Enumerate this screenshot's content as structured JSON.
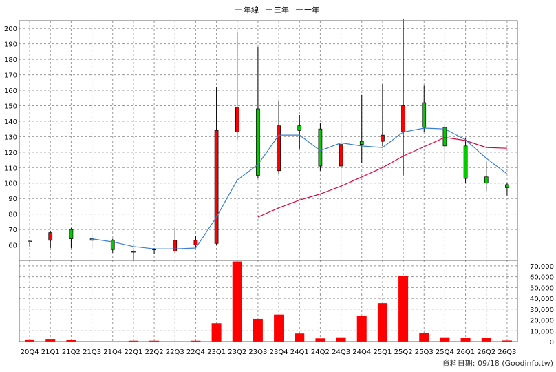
{
  "chart_data": {
    "type": "candlestick",
    "legend": [
      {
        "name": "年線",
        "color": "#3a7fd5"
      },
      {
        "name": "三年",
        "color": "#e0003c"
      },
      {
        "name": "十年",
        "color": "#a0005a"
      }
    ],
    "categories": [
      "20Q4",
      "21Q1",
      "21Q2",
      "21Q3",
      "21Q4",
      "22Q1",
      "22Q2",
      "22Q3",
      "22Q4",
      "23Q1",
      "23Q2",
      "23Q3",
      "23Q4",
      "24Q1",
      "24Q2",
      "24Q3",
      "24Q4",
      "25Q1",
      "25Q2",
      "25Q3",
      "25Q4",
      "26Q1",
      "26Q2",
      "26Q3"
    ],
    "price_axis": {
      "min": 50,
      "max": 205,
      "ticks": [
        60,
        70,
        80,
        90,
        100,
        110,
        120,
        130,
        140,
        150,
        160,
        170,
        180,
        190,
        200
      ]
    },
    "volume_axis": {
      "min": 0,
      "max": 75000,
      "ticks": [
        0,
        10000,
        20000,
        30000,
        40000,
        50000,
        60000,
        70000
      ],
      "tick_labels": [
        "0",
        "10,000",
        "20,000",
        "30,000",
        "40,000",
        "50,000",
        "60,000",
        "70,000"
      ]
    },
    "candles": [
      {
        "open": 62.5,
        "high": 63.0,
        "low": 59.0,
        "close": 62.0
      },
      {
        "open": 63.0,
        "high": 69.0,
        "low": 58.0,
        "close": 68.0
      },
      {
        "open": 70.0,
        "high": 71.0,
        "low": 58.0,
        "close": 64.0
      },
      {
        "open": 64.0,
        "high": 67.0,
        "low": 58.0,
        "close": 63.0
      },
      {
        "open": 63.0,
        "high": 64.0,
        "low": 55.0,
        "close": 57.0
      },
      {
        "open": 56.0,
        "high": 56.5,
        "low": 50.0,
        "close": 56.0
      },
      {
        "open": 57.0,
        "high": 58.0,
        "low": 54.0,
        "close": 57.5
      },
      {
        "open": 56.0,
        "high": 71.0,
        "low": 55.0,
        "close": 63.0
      },
      {
        "open": 60.0,
        "high": 66.0,
        "low": 58.0,
        "close": 63.0
      },
      {
        "open": 61.0,
        "high": 162.0,
        "low": 60.0,
        "close": 134.0
      },
      {
        "open": 133.0,
        "high": 198.0,
        "low": 128.0,
        "close": 149.0
      },
      {
        "open": 148.0,
        "high": 188.0,
        "low": 103.0,
        "close": 105.0
      },
      {
        "open": 108.0,
        "high": 153.0,
        "low": 106.0,
        "close": 137.0
      },
      {
        "open": 137.0,
        "high": 144.0,
        "low": 122.0,
        "close": 134.0
      },
      {
        "open": 135.0,
        "high": 139.0,
        "low": 108.0,
        "close": 111.0
      },
      {
        "open": 111.0,
        "high": 139.0,
        "low": 94.0,
        "close": 125.0
      },
      {
        "open": 127.0,
        "high": 157.0,
        "low": 113.0,
        "close": 125.0
      },
      {
        "open": 127.0,
        "high": 164.0,
        "low": 124.0,
        "close": 131.0
      },
      {
        "open": 133.0,
        "high": 206.0,
        "low": 105.0,
        "close": 150.0
      },
      {
        "open": 152.0,
        "high": 163.0,
        "low": 133.0,
        "close": 136.0
      },
      {
        "open": 136.0,
        "high": 138.0,
        "low": 113.0,
        "close": 124.0
      },
      {
        "open": 124.0,
        "high": 129.0,
        "low": 100.0,
        "close": 103.0
      },
      {
        "open": 104.0,
        "high": 114.0,
        "low": 95.0,
        "close": 100.0
      },
      {
        "open": 99.0,
        "high": 100.0,
        "low": 92.0,
        "close": 97.0
      }
    ],
    "series": [
      {
        "name": "年線",
        "values": [
          null,
          null,
          null,
          64,
          62,
          59,
          57.5,
          57.5,
          58,
          78,
          102,
          112,
          131,
          131,
          121,
          126,
          124,
          123,
          133,
          135.5,
          135,
          128,
          116,
          106
        ]
      },
      {
        "name": "三年",
        "values": [
          null,
          null,
          null,
          null,
          null,
          null,
          null,
          null,
          null,
          null,
          null,
          78,
          84,
          89,
          93,
          98,
          104,
          110,
          117.5,
          123.5,
          129.5,
          127.5,
          123,
          122.5
        ]
      },
      {
        "name": "十年",
        "values": [
          null,
          null,
          null,
          null,
          null,
          null,
          null,
          null,
          null,
          null,
          null,
          null,
          null,
          null,
          null,
          null,
          null,
          null,
          null,
          null,
          null,
          null,
          null,
          null
        ]
      }
    ],
    "volumes": [
      2000,
      2500,
      1500,
      100,
      200,
      800,
      800,
      300,
      800,
      17000,
      74000,
      21000,
      25000,
      7500,
      3000,
      4000,
      24000,
      35500,
      60500,
      8000,
      4000,
      3500,
      3500,
      1000
    ],
    "up_color": "#ff0000",
    "down_color": "#00cc00",
    "volume_color": "#ff0000",
    "grid": true
  },
  "footer": {
    "text": "資料日期: 09/18 (Goodinfo.tw)"
  }
}
